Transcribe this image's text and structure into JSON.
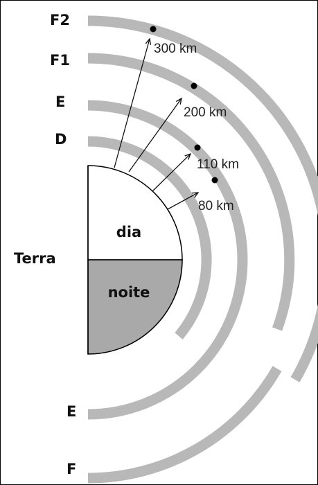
{
  "labels": {
    "f2": "F2",
    "f1": "F1",
    "e_top": "E",
    "d": "D",
    "terra": "Terra",
    "dia": "dia",
    "noite": "noite",
    "e_bottom": "E",
    "f_bottom": "F"
  },
  "heights": [
    "300 km",
    "200 km",
    "110 km",
    "80 km"
  ]
}
